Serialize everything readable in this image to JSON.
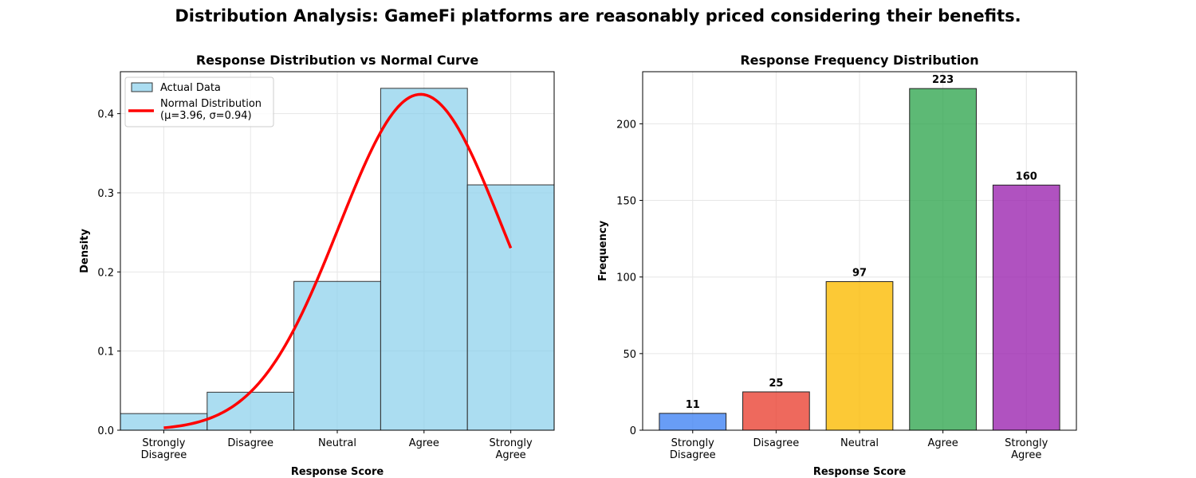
{
  "suptitle": "Distribution Analysis: GameFi platforms are reasonably priced considering their benefits.",
  "chart_data": [
    {
      "type": "bar",
      "title": "Response Distribution vs Normal Curve",
      "xlabel": "Response Score",
      "ylabel": "Density",
      "categories": [
        "Strongly\nDisagree",
        "Disagree",
        "Neutral",
        "Agree",
        "Strongly\nAgree"
      ],
      "x_scores": [
        1,
        2,
        3,
        4,
        5
      ],
      "xlim": [
        0.5,
        5.5
      ],
      "ylim": [
        0,
        0.453
      ],
      "yticks": [
        0.0,
        0.1,
        0.2,
        0.3,
        0.4
      ],
      "grid": true,
      "legend": "top-left",
      "series": [
        {
          "name": "Actual Data",
          "kind": "histogram",
          "values": [
            0.021,
            0.048,
            0.188,
            0.432,
            0.31
          ],
          "color": "#87CEEB",
          "edge_color": "#333333"
        },
        {
          "name": "Normal Distribution\n(μ=3.96, σ=0.94)",
          "kind": "curve",
          "mu": 3.96,
          "sigma": 0.94,
          "x_range": [
            1,
            5
          ],
          "color": "#ff0000"
        }
      ]
    },
    {
      "type": "bar",
      "title": "Response Frequency Distribution",
      "xlabel": "Response Score",
      "ylabel": "Frequency",
      "categories": [
        "Strongly\nDisagree",
        "Disagree",
        "Neutral",
        "Agree",
        "Strongly\nAgree"
      ],
      "values": [
        11,
        25,
        97,
        223,
        160
      ],
      "colors": [
        "#4285f4",
        "#ea4335",
        "#fbbc04",
        "#34a853",
        "#9c27b0"
      ],
      "edge_color": "#222222",
      "ylim": [
        0,
        234
      ],
      "yticks": [
        0,
        50,
        100,
        150,
        200
      ],
      "grid": true
    }
  ]
}
